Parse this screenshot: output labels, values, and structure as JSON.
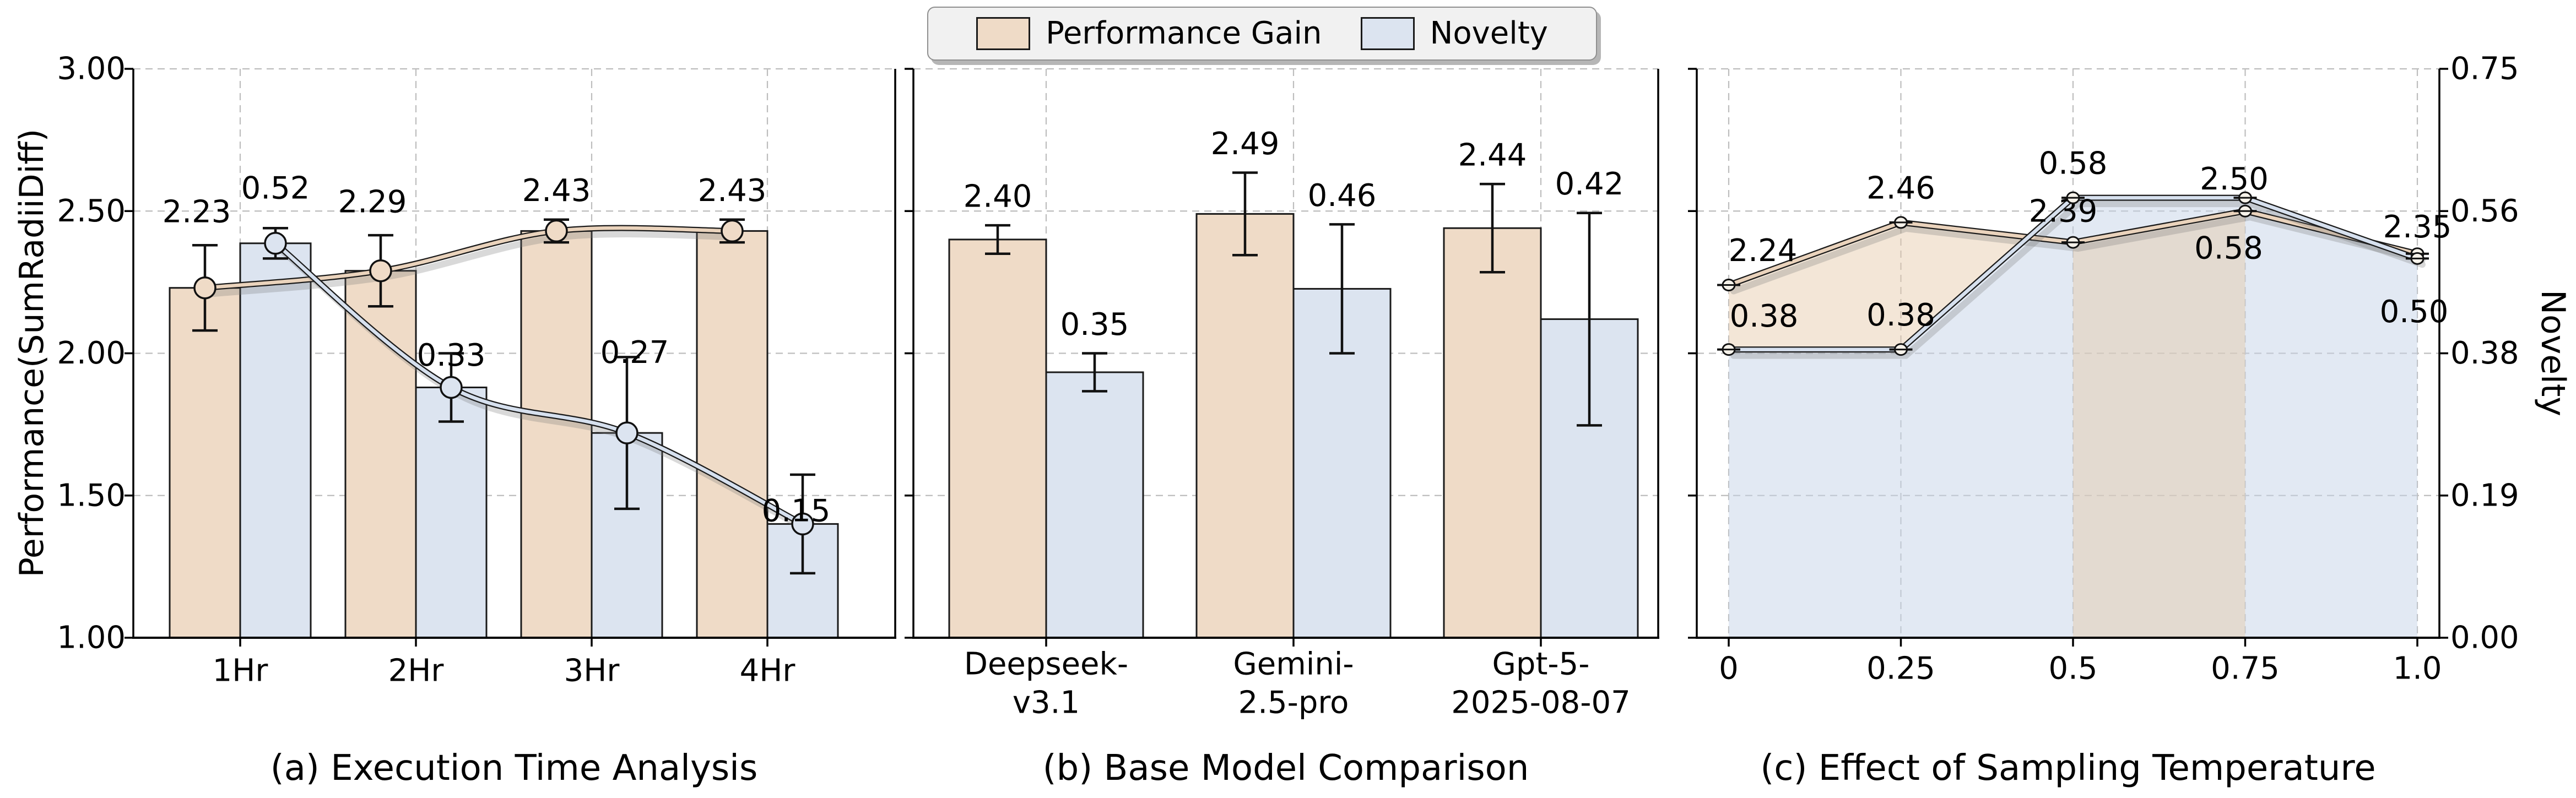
{
  "chart_data": {
    "legend": {
      "items": [
        {
          "label": "Performance Gain",
          "color": "#efdbc7",
          "edge": "#1a1a1a"
        },
        {
          "label": "Novelty",
          "color": "#dce4f0",
          "edge": "#1a1a1a"
        }
      ]
    },
    "left_axis": {
      "label": "Performance(SumRadiiDiff)",
      "ticks": [
        "3.00",
        "2.50",
        "2.00",
        "1.50",
        "1.00"
      ],
      "tick_values": [
        3.0,
        2.5,
        2.0,
        1.5,
        1.0
      ],
      "min": 1.0,
      "max": 3.0,
      "grid": true
    },
    "right_axis": {
      "label": "Novelty",
      "ticks": [
        "0.75",
        "0.56",
        "0.38",
        "0.19",
        "0.00"
      ],
      "tick_values": [
        0.75,
        0.5625,
        0.375,
        0.1875,
        0.0
      ],
      "min": 0.0,
      "max": 0.75
    },
    "panels": [
      {
        "id": "a",
        "type": "bar",
        "caption": "(a) Execution Time Analysis",
        "categories": [
          "1Hr",
          "2Hr",
          "3Hr",
          "4Hr"
        ],
        "series": [
          {
            "name": "Performance Gain",
            "axis": "left",
            "trendline": true,
            "values": [
              2.23,
              2.29,
              2.43,
              2.43
            ],
            "errors": [
              0.15,
              0.125,
              0.04,
              0.04
            ],
            "labels": [
              "2.23",
              "2.29",
              "2.43",
              "2.43"
            ]
          },
          {
            "name": "Novelty",
            "axis": "right",
            "trendline": true,
            "values": [
              0.52,
              0.33,
              0.27,
              0.15
            ],
            "errors": [
              0.02,
              0.045,
              0.1,
              0.065
            ],
            "labels": [
              "0.52",
              "0.33",
              "0.27",
              "0.15"
            ]
          }
        ]
      },
      {
        "id": "b",
        "type": "bar",
        "caption": "(b) Base Model Comparison",
        "categories": [
          [
            "Deepseek-",
            "v3.1"
          ],
          [
            "Gemini-",
            "2.5-pro"
          ],
          [
            "Gpt-5-",
            "2025-08-07"
          ]
        ],
        "series": [
          {
            "name": "Performance Gain",
            "axis": "left",
            "trendline": false,
            "values": [
              2.4,
              2.49,
              2.44
            ],
            "errors": [
              0.05,
              0.145,
              0.155
            ],
            "labels": [
              "2.40",
              "2.49",
              "2.44"
            ]
          },
          {
            "name": "Novelty",
            "axis": "right",
            "trendline": false,
            "values": [
              0.35,
              0.46,
              0.42
            ],
            "errors": [
              0.025,
              0.085,
              0.14
            ],
            "labels": [
              "0.35",
              "0.46",
              "0.42"
            ]
          }
        ]
      },
      {
        "id": "c",
        "type": "line-area",
        "caption": "(c) Effect of Sampling Temperature",
        "x_ticklabels": [
          "0",
          "0.25",
          "0.5",
          "0.75",
          "1.0"
        ],
        "x_values": [
          0,
          0.25,
          0.5,
          0.75,
          1.0
        ],
        "series": [
          {
            "name": "Performance Gain",
            "axis": "left",
            "values": [
              2.24,
              2.46,
              2.39,
              2.5,
              2.35
            ],
            "errors": [
              0.01,
              0.01,
              0.01,
              0.01,
              0.01
            ],
            "labels": [
              "2.24",
              "2.46",
              "2.39",
              "2.50",
              "2.35"
            ]
          },
          {
            "name": "Novelty",
            "axis": "right",
            "values": [
              0.38,
              0.38,
              0.58,
              0.58,
              0.5
            ],
            "errors": [
              0.01,
              0.01,
              0.01,
              0.01,
              0.01
            ],
            "labels": [
              "0.38",
              "0.38",
              "0.58",
              "0.58",
              "0.50"
            ]
          }
        ]
      }
    ],
    "colors": {
      "perf_bar": "#efdbc7",
      "nov_bar": "#dce4f0",
      "perf_line": "#ead3bc",
      "nov_line": "#d6e0ee",
      "perf_fill": "rgba(229,199,167,0.45)",
      "nov_fill": "rgba(197,211,232,0.5)",
      "grid": "#bdbdbd",
      "spine": "#000000",
      "error": "#111111",
      "marker_edge": "#111111",
      "marker_c_fill": "#f6f2ea"
    }
  }
}
